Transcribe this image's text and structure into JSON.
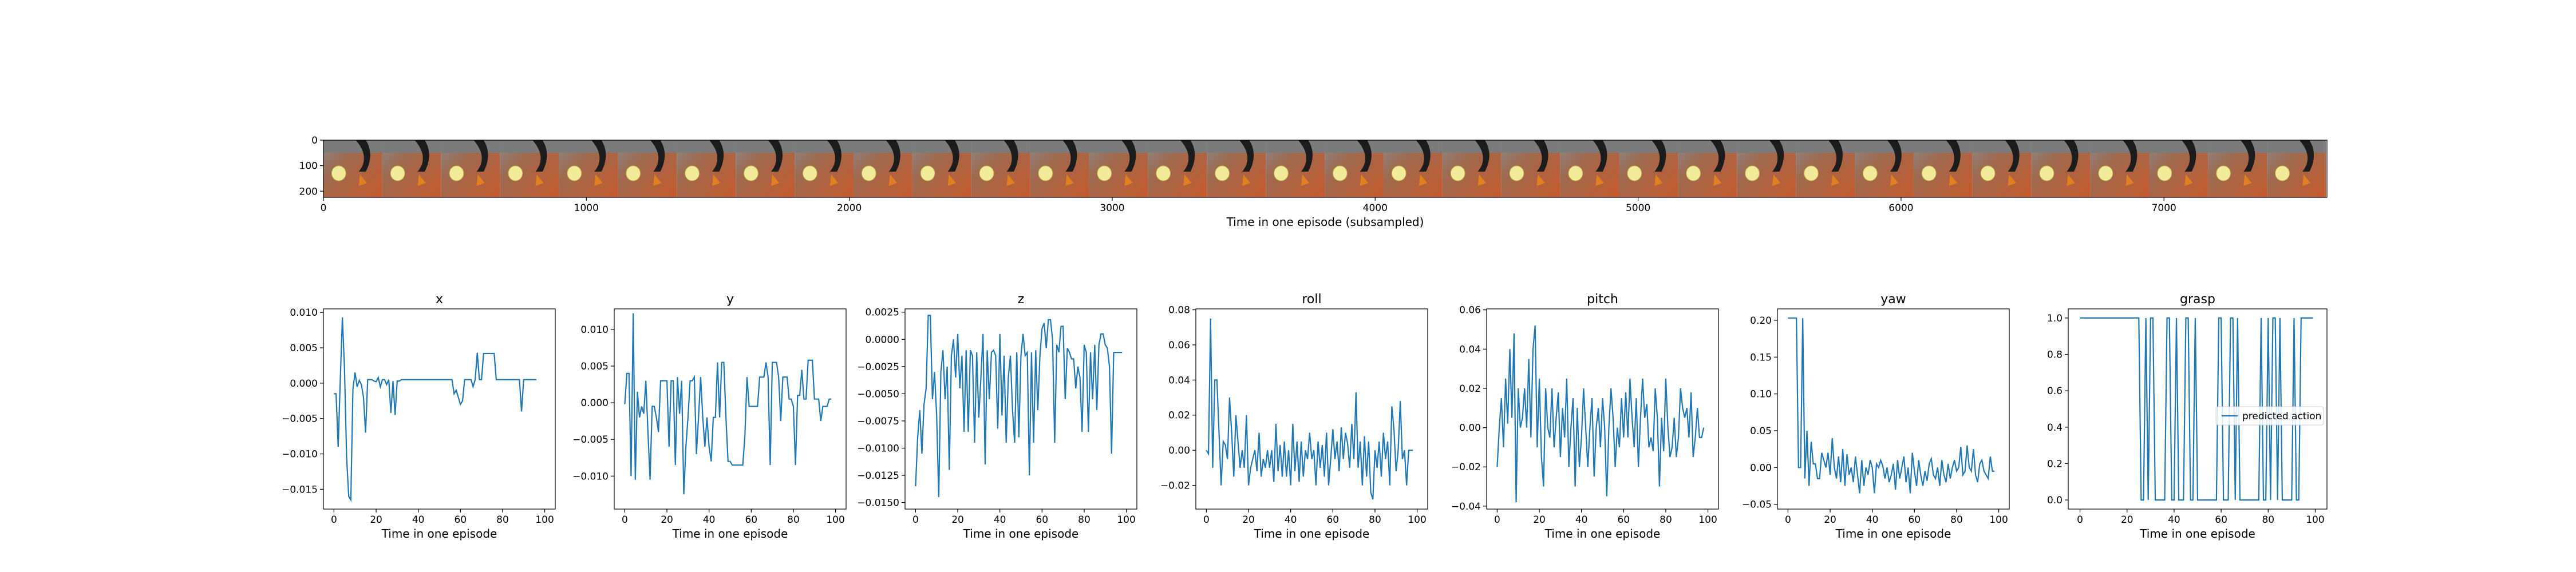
{
  "chart_data": [
    {
      "type": "image-strip",
      "xlabel": "Time in one episode (subsampled)",
      "xlim": [
        0,
        7620
      ],
      "ylim": [
        224,
        0
      ],
      "x_ticks": [
        0,
        1000,
        2000,
        3000,
        4000,
        5000,
        6000,
        7000
      ],
      "y_ticks": [
        0,
        100,
        200
      ],
      "frame_count": 34,
      "frame_width": 224
    },
    {
      "type": "line",
      "title": "x",
      "xlabel": "Time in one episode",
      "xlim": [
        -5,
        105
      ],
      "ylim": [
        -0.0178,
        0.0105
      ],
      "x_ticks": [
        0,
        20,
        40,
        60,
        80,
        100
      ],
      "y_ticks": [
        -0.015,
        -0.01,
        -0.005,
        0.0,
        0.005,
        0.01
      ],
      "y_tick_labels": [
        "−0.015",
        "−0.010",
        "−0.005",
        "0.000",
        "0.005",
        "0.010"
      ],
      "series": [
        {
          "values": [
            -0.0015,
            -0.0015,
            -0.009,
            0.0005,
            0.0093,
            0.002,
            -0.0105,
            -0.016,
            -0.0165,
            -0.0008,
            0.0015,
            -0.0005,
            0.0004,
            -0.0002,
            -0.002,
            -0.007,
            0.0005,
            0.0005,
            0.0005,
            0.0003,
            0.0002,
            0.0008,
            -0.0005,
            0.0005,
            0.0005,
            -0.0002,
            0.0005,
            -0.0042,
            0.0003,
            -0.0045,
            0.0003,
            0.0003,
            0.0005,
            0.0005,
            0.0005,
            0.0005,
            0.0005,
            0.0005,
            0.0005,
            0.0005,
            0.0005,
            0.0005,
            0.0005,
            0.0005,
            0.0005,
            0.0005,
            0.0005,
            0.0005,
            0.0005,
            0.0005,
            0.0005,
            0.0005,
            0.0005,
            0.0005,
            0.0005,
            0.0005,
            0.0005,
            -0.0015,
            -0.001,
            -0.002,
            -0.003,
            -0.0025,
            0.0005,
            0.0005,
            0.0005,
            0.0005,
            -0.0005,
            0.0005,
            0.0043,
            0.0005,
            0.0005,
            0.0042,
            0.0042,
            0.0042,
            0.0042,
            0.0042,
            0.0042,
            0.0005,
            0.0005,
            0.0005,
            0.0005,
            0.0005,
            0.0005,
            0.0005,
            0.0005,
            0.0005,
            0.0005,
            0.0005,
            0.0005,
            -0.004,
            0.0005,
            0.0005,
            0.0005,
            0.0005,
            0.0005,
            0.0005,
            0.0005
          ]
        }
      ]
    },
    {
      "type": "line",
      "title": "y",
      "xlabel": "Time in one episode",
      "xlim": [
        -5,
        105
      ],
      "ylim": [
        -0.0145,
        0.0128
      ],
      "x_ticks": [
        0,
        20,
        40,
        60,
        80,
        100
      ],
      "y_ticks": [
        -0.01,
        -0.005,
        0.0,
        0.005,
        0.01
      ],
      "y_tick_labels": [
        "−0.010",
        "−0.005",
        "0.000",
        "0.005",
        "0.010"
      ],
      "series": [
        {
          "values": [
            -0.0002,
            0.004,
            0.004,
            -0.01,
            0.0122,
            -0.0105,
            0.0015,
            -0.002,
            -0.0005,
            -0.0015,
            0.003,
            -0.004,
            -0.0105,
            -0.0005,
            -0.0005,
            -0.002,
            -0.004,
            0.003,
            0.003,
            0.003,
            0.003,
            -0.006,
            0.003,
            0.003,
            -0.0085,
            0.0035,
            -0.0015,
            0.003,
            -0.0125,
            -0.006,
            -0.002,
            0.003,
            0.003,
            0.0035,
            -0.007,
            -0.002,
            0.0035,
            -0.002,
            -0.006,
            -0.002,
            -0.006,
            -0.008,
            -0.002,
            -0.002,
            0.0055,
            -0.002,
            0.0055,
            0.0055,
            -0.002,
            -0.008,
            -0.008,
            -0.0085,
            -0.0085,
            -0.0085,
            -0.0085,
            -0.0085,
            -0.0085,
            -0.0045,
            0.0035,
            -0.0005,
            -0.0005,
            -0.0005,
            -0.0005,
            -0.0005,
            0.0035,
            0.0035,
            0.0035,
            0.0055,
            0.0035,
            -0.0085,
            0.0055,
            0.0055,
            0.0055,
            0.0035,
            -0.0025,
            0.0035,
            0.0035,
            0.0035,
            0.0005,
            0.0005,
            -0.0005,
            -0.0085,
            0.001,
            0.001,
            0.0045,
            0.0005,
            0.0005,
            0.0058,
            0.0058,
            0.0058,
            0.0005,
            0.0005,
            0.0005,
            -0.0025,
            -0.0005,
            -0.0005,
            -0.0005,
            0.0005,
            0.0005
          ]
        }
      ]
    },
    {
      "type": "line",
      "title": "z",
      "xlabel": "Time in one episode",
      "xlim": [
        -5,
        105
      ],
      "ylim": [
        -0.0156,
        0.0028
      ],
      "x_ticks": [
        0,
        20,
        40,
        60,
        80,
        100
      ],
      "y_ticks": [
        -0.015,
        -0.0125,
        -0.01,
        -0.0075,
        -0.005,
        -0.0025,
        0.0,
        0.0025
      ],
      "y_tick_labels": [
        "−0.0150",
        "−0.0125",
        "−0.0100",
        "−0.0075",
        "−0.0050",
        "−0.0025",
        "0.0000",
        "0.0025"
      ],
      "series": [
        {
          "values": [
            -0.0135,
            -0.009,
            -0.0065,
            -0.0105,
            -0.006,
            -0.0045,
            0.0022,
            0.0022,
            -0.0055,
            -0.003,
            -0.007,
            -0.0145,
            -0.003,
            -0.001,
            -0.0055,
            -0.0025,
            -0.012,
            -0.0015,
            0.0,
            -0.0035,
            0.0005,
            -0.0045,
            -0.0015,
            -0.0085,
            -0.001,
            -0.0085,
            -0.001,
            -0.0015,
            -0.0095,
            -0.0012,
            -0.0072,
            -0.0035,
            0.0005,
            -0.0115,
            -0.001,
            -0.0055,
            -0.0012,
            -0.001,
            -0.0015,
            -0.0082,
            0.0005,
            -0.007,
            -0.0015,
            -0.0095,
            -0.0035,
            -0.0015,
            -0.0065,
            -0.0095,
            -0.0012,
            -0.009,
            -0.0015,
            0.0005,
            -0.0015,
            -0.0012,
            -0.0125,
            -0.0012,
            -0.0095,
            -0.001,
            -0.0065,
            -0.0015,
            0.001,
            0.0015,
            -0.0008,
            0.0018,
            0.0018,
            0.0,
            -0.0095,
            -0.0005,
            -0.0012,
            0.0012,
            0.0012,
            -0.0055,
            -0.0008,
            -0.0012,
            -0.0018,
            -0.0018,
            -0.0045,
            -0.0025,
            -0.0035,
            -0.0085,
            -0.0005,
            -0.0012,
            -0.0085,
            -0.0012,
            -0.0055,
            -0.0005,
            -0.0065,
            -0.0005,
            0.0005,
            0.0005,
            -0.0005,
            -0.0008,
            -0.0025,
            -0.0105,
            -0.0012,
            -0.0012,
            -0.0012,
            -0.0012,
            -0.0012
          ]
        }
      ]
    },
    {
      "type": "line",
      "title": "roll",
      "xlabel": "Time in one episode",
      "xlim": [
        -5,
        105
      ],
      "ylim": [
        -0.0335,
        0.0805
      ],
      "x_ticks": [
        0,
        20,
        40,
        60,
        80,
        100
      ],
      "y_ticks": [
        -0.02,
        0.0,
        0.02,
        0.04,
        0.06,
        0.08
      ],
      "y_tick_labels": [
        "−0.02",
        "0.00",
        "0.02",
        "0.04",
        "0.06",
        "0.08"
      ],
      "series": [
        {
          "values": [
            0.0,
            -0.002,
            0.075,
            -0.01,
            0.04,
            0.04,
            0.01,
            -0.02,
            0.005,
            0.003,
            -0.005,
            0.03,
            0.01,
            -0.015,
            0.02,
            0.005,
            -0.01,
            0.0,
            -0.01,
            0.02,
            -0.02,
            -0.01,
            -0.005,
            0.0,
            -0.012,
            0.01,
            -0.015,
            -0.005,
            -0.01,
            0.0,
            -0.01,
            0.0,
            -0.018,
            0.015,
            -0.012,
            0.003,
            -0.015,
            0.005,
            -0.015,
            0.0,
            -0.02,
            0.015,
            -0.012,
            0.005,
            -0.018,
            0.005,
            -0.015,
            0.0,
            -0.005,
            0.01,
            -0.005,
            0.0,
            -0.02,
            0.005,
            -0.01,
            0.003,
            -0.015,
            0.01,
            -0.02,
            -0.005,
            0.012,
            -0.005,
            0.005,
            -0.012,
            0.013,
            -0.005,
            0.01,
            0.004,
            -0.01,
            0.015,
            -0.005,
            0.033,
            -0.01,
            0.005,
            -0.02,
            0.008,
            -0.015,
            0.005,
            -0.024,
            -0.028,
            0.0,
            -0.01,
            0.005,
            -0.015,
            0.01,
            -0.005,
            0.005,
            -0.02,
            0.025,
            0.012,
            -0.012,
            0.0,
            0.028,
            -0.005,
            0.0,
            -0.02,
            0.0,
            0.0,
            0.0
          ]
        }
      ]
    },
    {
      "type": "line",
      "title": "pitch",
      "xlabel": "Time in one episode",
      "xlim": [
        -5,
        105
      ],
      "ylim": [
        -0.0415,
        0.0605
      ],
      "x_ticks": [
        0,
        20,
        40,
        60,
        80,
        100
      ],
      "y_ticks": [
        -0.04,
        -0.02,
        0.0,
        0.02,
        0.04,
        0.06
      ],
      "y_tick_labels": [
        "−0.04",
        "−0.02",
        "0.00",
        "0.02",
        "0.04",
        "0.06"
      ],
      "series": [
        {
          "values": [
            -0.02,
            0.0,
            0.015,
            -0.01,
            0.025,
            0.002,
            0.04,
            0.005,
            0.048,
            -0.038,
            0.02,
            0.0,
            0.005,
            0.02,
            0.0,
            0.035,
            -0.005,
            0.04,
            0.052,
            -0.01,
            0.025,
            -0.015,
            -0.03,
            0.02,
            0.0,
            -0.005,
            0.02,
            -0.01,
            0.005,
            0.018,
            -0.015,
            0.01,
            -0.005,
            0.025,
            -0.02,
            0.0,
            0.015,
            -0.03,
            0.01,
            -0.02,
            -0.005,
            0.02,
            0.0,
            -0.02,
            0.0,
            0.015,
            -0.025,
            0.0,
            0.01,
            -0.01,
            0.015,
            0.0,
            -0.035,
            0.0,
            0.02,
            0.005,
            -0.02,
            0.0,
            -0.01,
            0.015,
            -0.005,
            0.018,
            -0.005,
            0.025,
            0.005,
            -0.01,
            0.015,
            -0.02,
            0.005,
            0.025,
            0.005,
            0.012,
            -0.01,
            -0.005,
            -0.012,
            0.02,
            0.005,
            -0.03,
            0.005,
            -0.012,
            0.025,
            0.0,
            -0.015,
            -0.01,
            0.005,
            -0.015,
            -0.005,
            0.02,
            0.01,
            0.005,
            0.01,
            -0.005,
            0.018,
            -0.015,
            -0.005,
            0.01,
            -0.005,
            -0.005,
            0.0
          ]
        }
      ]
    },
    {
      "type": "line",
      "title": "yaw",
      "xlabel": "Time in one episode",
      "xlim": [
        -5,
        105
      ],
      "ylim": [
        -0.0565,
        0.2155
      ],
      "x_ticks": [
        0,
        20,
        40,
        60,
        80,
        100
      ],
      "y_ticks": [
        -0.05,
        0.0,
        0.05,
        0.1,
        0.15,
        0.2
      ],
      "y_tick_labels": [
        "−0.05",
        "0.00",
        "0.05",
        "0.10",
        "0.15",
        "0.20"
      ],
      "series": [
        {
          "values": [
            0.203,
            0.203,
            0.203,
            0.203,
            0.203,
            0.0,
            0.0,
            0.203,
            -0.015,
            0.05,
            -0.025,
            0.035,
            0.005,
            0.005,
            -0.015,
            -0.015,
            0.02,
            0.01,
            0.0,
            0.02,
            -0.01,
            0.04,
            0.0,
            -0.015,
            0.015,
            -0.02,
            0.025,
            -0.025,
            0.018,
            -0.01,
            0.0,
            -0.02,
            0.015,
            -0.01,
            -0.035,
            0.01,
            -0.025,
            0.0,
            -0.01,
            0.01,
            0.0,
            -0.035,
            0.005,
            0.0,
            0.01,
            0.002,
            -0.015,
            0.0,
            -0.02,
            -0.01,
            0.005,
            -0.03,
            0.01,
            -0.015,
            0.0,
            0.015,
            -0.02,
            0.0,
            -0.035,
            0.02,
            -0.005,
            -0.025,
            0.01,
            -0.01,
            -0.025,
            -0.005,
            -0.018,
            0.005,
            0.012,
            -0.01,
            -0.015,
            0.0,
            -0.025,
            0.01,
            -0.01,
            -0.02,
            0.005,
            -0.015,
            0.0,
            0.01,
            -0.005,
            0.0,
            0.028,
            -0.01,
            -0.005,
            0.03,
            0.0,
            -0.005,
            0.025,
            -0.01,
            -0.02,
            0.005,
            0.01,
            -0.005,
            -0.01,
            -0.015,
            0.015,
            -0.005,
            -0.005
          ]
        }
      ]
    },
    {
      "type": "line",
      "title": "grasp",
      "xlabel": "Time in one episode",
      "xlim": [
        -5,
        105
      ],
      "ylim": [
        -0.05,
        1.05
      ],
      "x_ticks": [
        0,
        20,
        40,
        60,
        80,
        100
      ],
      "y_ticks": [
        0.0,
        0.2,
        0.4,
        0.6,
        0.8,
        1.0
      ],
      "y_tick_labels": [
        "0.0",
        "0.2",
        "0.4",
        "0.6",
        "0.8",
        "1.0"
      ],
      "legend": {
        "label": "predicted action",
        "position": "center-right"
      },
      "series": [
        {
          "name": "predicted action",
          "values": [
            1,
            1,
            1,
            1,
            1,
            1,
            1,
            1,
            1,
            1,
            1,
            1,
            1,
            1,
            1,
            1,
            1,
            1,
            1,
            1,
            1,
            1,
            1,
            1,
            1,
            1,
            0,
            0,
            1,
            0,
            1,
            1,
            0,
            0,
            0,
            0,
            0,
            1,
            1,
            0,
            0,
            1,
            0,
            0,
            0,
            1,
            1,
            0,
            0,
            1,
            0,
            0,
            0,
            0,
            0,
            0,
            0,
            0,
            0,
            1,
            1,
            0,
            0,
            0,
            1,
            1,
            0,
            1,
            0,
            0,
            0,
            0,
            0,
            0,
            0,
            0,
            0,
            1,
            0,
            0,
            1,
            0,
            1,
            1,
            0,
            1,
            0,
            0,
            0,
            0,
            0,
            1,
            0,
            0,
            1,
            1,
            1,
            1,
            1,
            1
          ]
        }
      ]
    }
  ]
}
